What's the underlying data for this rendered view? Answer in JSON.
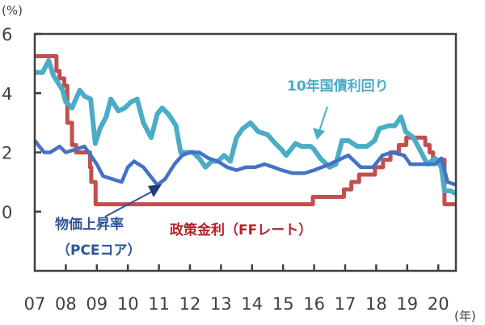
{
  "chart_data": {
    "type": "line",
    "ylabel": "(%)",
    "xlabel": "(年)",
    "ylim": [
      -2,
      6
    ],
    "xlim": [
      2007.0,
      2020.58
    ],
    "yticks": [
      "6",
      "4",
      "2",
      "0"
    ],
    "ytick_values": [
      6,
      4,
      2,
      0
    ],
    "xticks": [
      "07",
      "08",
      "09",
      "10",
      "11",
      "12",
      "13",
      "14",
      "15",
      "16",
      "17",
      "18",
      "19",
      "20"
    ],
    "grid": false,
    "colors": {
      "ffrate": "#c0504d",
      "ust10y": "#4bacc6",
      "pce": "#4472c4",
      "ffrate_label": "#b4222a",
      "pce_label": "#2e5597",
      "ust10y_label": "#4bacc6"
    },
    "series": [
      {
        "name": "10年国債利回り",
        "key": "ust10y",
        "points": [
          [
            2007.0,
            4.7
          ],
          [
            2007.25,
            4.7
          ],
          [
            2007.45,
            5.1
          ],
          [
            2007.6,
            4.6
          ],
          [
            2007.9,
            4.1
          ],
          [
            2008.0,
            3.7
          ],
          [
            2008.2,
            3.5
          ],
          [
            2008.45,
            4.1
          ],
          [
            2008.6,
            3.9
          ],
          [
            2008.8,
            3.8
          ],
          [
            2008.95,
            2.3
          ],
          [
            2009.1,
            2.8
          ],
          [
            2009.3,
            3.2
          ],
          [
            2009.45,
            3.8
          ],
          [
            2009.7,
            3.4
          ],
          [
            2009.9,
            3.5
          ],
          [
            2010.1,
            3.7
          ],
          [
            2010.3,
            3.8
          ],
          [
            2010.5,
            3.0
          ],
          [
            2010.75,
            2.5
          ],
          [
            2010.95,
            3.3
          ],
          [
            2011.1,
            3.5
          ],
          [
            2011.3,
            3.3
          ],
          [
            2011.55,
            2.9
          ],
          [
            2011.7,
            2.0
          ],
          [
            2011.9,
            2.0
          ],
          [
            2012.1,
            2.0
          ],
          [
            2012.3,
            1.8
          ],
          [
            2012.5,
            1.5
          ],
          [
            2012.7,
            1.7
          ],
          [
            2012.9,
            1.7
          ],
          [
            2013.1,
            1.9
          ],
          [
            2013.3,
            1.7
          ],
          [
            2013.5,
            2.5
          ],
          [
            2013.7,
            2.8
          ],
          [
            2013.95,
            3.0
          ],
          [
            2014.2,
            2.7
          ],
          [
            2014.5,
            2.6
          ],
          [
            2014.75,
            2.3
          ],
          [
            2014.95,
            2.1
          ],
          [
            2015.1,
            1.9
          ],
          [
            2015.4,
            2.3
          ],
          [
            2015.6,
            2.2
          ],
          [
            2015.9,
            2.2
          ],
          [
            2016.0,
            2.1
          ],
          [
            2016.2,
            1.8
          ],
          [
            2016.5,
            1.5
          ],
          [
            2016.7,
            1.6
          ],
          [
            2016.9,
            2.4
          ],
          [
            2017.1,
            2.4
          ],
          [
            2017.4,
            2.2
          ],
          [
            2017.7,
            2.2
          ],
          [
            2017.95,
            2.4
          ],
          [
            2018.1,
            2.8
          ],
          [
            2018.4,
            2.9
          ],
          [
            2018.6,
            2.9
          ],
          [
            2018.8,
            3.2
          ],
          [
            2018.95,
            2.7
          ],
          [
            2019.2,
            2.5
          ],
          [
            2019.45,
            2.0
          ],
          [
            2019.65,
            1.6
          ],
          [
            2019.9,
            1.8
          ],
          [
            2020.1,
            1.5
          ],
          [
            2020.2,
            0.7
          ],
          [
            2020.4,
            0.7
          ],
          [
            2020.58,
            0.6
          ]
        ]
      },
      {
        "name": "物価上昇率（PCEコア）",
        "key": "pce",
        "points": [
          [
            2007.0,
            2.4
          ],
          [
            2007.3,
            2.0
          ],
          [
            2007.5,
            2.0
          ],
          [
            2007.8,
            2.2
          ],
          [
            2008.0,
            2.0
          ],
          [
            2008.3,
            2.1
          ],
          [
            2008.6,
            2.2
          ],
          [
            2008.8,
            1.9
          ],
          [
            2009.0,
            1.6
          ],
          [
            2009.2,
            1.2
          ],
          [
            2009.5,
            1.1
          ],
          [
            2009.8,
            1.0
          ],
          [
            2010.0,
            1.5
          ],
          [
            2010.2,
            1.7
          ],
          [
            2010.5,
            1.5
          ],
          [
            2010.8,
            1.1
          ],
          [
            2010.95,
            0.9
          ],
          [
            2011.2,
            1.1
          ],
          [
            2011.5,
            1.6
          ],
          [
            2011.75,
            1.9
          ],
          [
            2012.0,
            2.0
          ],
          [
            2012.3,
            2.0
          ],
          [
            2012.6,
            1.8
          ],
          [
            2012.9,
            1.7
          ],
          [
            2013.2,
            1.5
          ],
          [
            2013.5,
            1.4
          ],
          [
            2013.8,
            1.5
          ],
          [
            2014.1,
            1.5
          ],
          [
            2014.4,
            1.6
          ],
          [
            2014.7,
            1.5
          ],
          [
            2014.95,
            1.4
          ],
          [
            2015.3,
            1.3
          ],
          [
            2015.7,
            1.3
          ],
          [
            2016.0,
            1.4
          ],
          [
            2016.5,
            1.6
          ],
          [
            2016.9,
            1.8
          ],
          [
            2017.1,
            1.9
          ],
          [
            2017.5,
            1.5
          ],
          [
            2017.9,
            1.5
          ],
          [
            2018.2,
            1.9
          ],
          [
            2018.5,
            2.0
          ],
          [
            2018.9,
            1.9
          ],
          [
            2019.1,
            1.6
          ],
          [
            2019.5,
            1.6
          ],
          [
            2019.9,
            1.6
          ],
          [
            2020.1,
            1.8
          ],
          [
            2020.3,
            1.0
          ],
          [
            2020.58,
            0.9
          ]
        ]
      },
      {
        "name": "政策金利（FFレート）",
        "key": "ffrate",
        "step": true,
        "points": [
          [
            2007.0,
            5.25
          ],
          [
            2007.7,
            4.75
          ],
          [
            2007.8,
            4.5
          ],
          [
            2007.95,
            4.25
          ],
          [
            2008.05,
            3.0
          ],
          [
            2008.2,
            2.25
          ],
          [
            2008.33,
            2.0
          ],
          [
            2008.78,
            1.5
          ],
          [
            2008.82,
            1.0
          ],
          [
            2008.96,
            0.25
          ],
          [
            2015.96,
            0.5
          ],
          [
            2016.96,
            0.75
          ],
          [
            2017.2,
            1.0
          ],
          [
            2017.45,
            1.25
          ],
          [
            2017.96,
            1.5
          ],
          [
            2018.22,
            1.75
          ],
          [
            2018.46,
            2.0
          ],
          [
            2018.73,
            2.25
          ],
          [
            2018.97,
            2.5
          ],
          [
            2019.58,
            2.25
          ],
          [
            2019.72,
            2.0
          ],
          [
            2019.83,
            1.75
          ],
          [
            2020.2,
            0.25
          ],
          [
            2020.58,
            0.25
          ]
        ]
      }
    ],
    "annotations": {
      "ust10y": "10年国債利回り",
      "pce_line1": "物価上昇率",
      "pce_line2": "（PCEコア）",
      "ffrate": "政策金利（FFレート）"
    }
  }
}
